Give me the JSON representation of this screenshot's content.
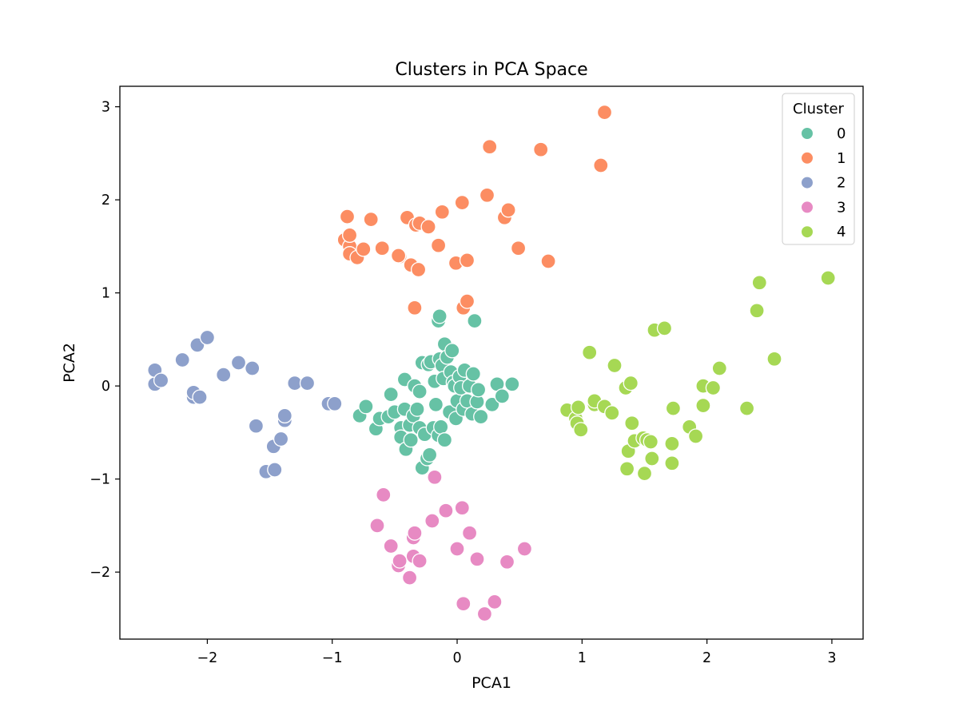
{
  "chart_data": {
    "type": "scatter",
    "title": "Clusters in PCA Space",
    "xlabel": "PCA1",
    "ylabel": "PCA2",
    "xlim": [
      -2.7,
      3.25
    ],
    "ylim": [
      -2.72,
      3.22
    ],
    "xticks": [
      -2,
      -1,
      0,
      1,
      2,
      3
    ],
    "yticks": [
      -2,
      -1,
      0,
      1,
      2,
      3
    ],
    "grid": false,
    "legend": {
      "title": "Cluster",
      "placement": "top-right"
    },
    "series": [
      {
        "name": "0",
        "color": "#66c2a5",
        "points": [
          [
            -0.78,
            -0.32
          ],
          [
            -0.73,
            -0.22
          ],
          [
            -0.65,
            -0.46
          ],
          [
            -0.62,
            -0.35
          ],
          [
            -0.55,
            -0.33
          ],
          [
            -0.53,
            -0.09
          ],
          [
            -0.5,
            -0.28
          ],
          [
            -0.45,
            -0.45
          ],
          [
            -0.45,
            -0.55
          ],
          [
            -0.42,
            -0.25
          ],
          [
            -0.42,
            0.07
          ],
          [
            -0.41,
            -0.68
          ],
          [
            -0.38,
            -0.42
          ],
          [
            -0.37,
            -0.58
          ],
          [
            -0.35,
            -0.32
          ],
          [
            -0.34,
            0.0
          ],
          [
            -0.32,
            -0.25
          ],
          [
            -0.3,
            -0.45
          ],
          [
            -0.3,
            -0.06
          ],
          [
            -0.28,
            0.25
          ],
          [
            -0.28,
            -0.88
          ],
          [
            -0.26,
            -0.52
          ],
          [
            -0.24,
            -0.78
          ],
          [
            -0.23,
            0.23
          ],
          [
            -0.22,
            -0.74
          ],
          [
            -0.21,
            0.26
          ],
          [
            -0.19,
            -0.45
          ],
          [
            -0.18,
            0.05
          ],
          [
            -0.17,
            -0.2
          ],
          [
            -0.15,
            -0.53
          ],
          [
            -0.15,
            0.7
          ],
          [
            -0.14,
            0.75
          ],
          [
            -0.14,
            0.29
          ],
          [
            -0.13,
            -0.44
          ],
          [
            -0.12,
            0.22
          ],
          [
            -0.11,
            0.08
          ],
          [
            -0.1,
            0.45
          ],
          [
            -0.1,
            -0.58
          ],
          [
            -0.08,
            0.31
          ],
          [
            -0.06,
            -0.28
          ],
          [
            -0.05,
            0.15
          ],
          [
            -0.04,
            0.38
          ],
          [
            -0.03,
            0.04
          ],
          [
            -0.02,
            0.0
          ],
          [
            -0.01,
            -0.35
          ],
          [
            0.0,
            -0.16
          ],
          [
            0.02,
            0.1
          ],
          [
            0.03,
            -0.02
          ],
          [
            0.05,
            -0.25
          ],
          [
            0.06,
            0.17
          ],
          [
            0.08,
            -0.16
          ],
          [
            0.1,
            0.0
          ],
          [
            0.12,
            -0.3
          ],
          [
            0.13,
            0.13
          ],
          [
            0.14,
            0.7
          ],
          [
            0.16,
            -0.17
          ],
          [
            0.17,
            -0.04
          ],
          [
            0.19,
            -0.33
          ],
          [
            0.28,
            -0.2
          ],
          [
            0.32,
            0.02
          ],
          [
            0.36,
            -0.11
          ],
          [
            0.44,
            0.02
          ]
        ]
      },
      {
        "name": "1",
        "color": "#fc8d62",
        "points": [
          [
            -0.9,
            1.57
          ],
          [
            -0.88,
            1.82
          ],
          [
            -0.86,
            1.5
          ],
          [
            -0.86,
            1.42
          ],
          [
            -0.86,
            1.62
          ],
          [
            -0.8,
            1.38
          ],
          [
            -0.75,
            1.47
          ],
          [
            -0.69,
            1.79
          ],
          [
            -0.6,
            1.48
          ],
          [
            -0.46,
            1.39
          ],
          [
            -0.47,
            1.4
          ],
          [
            -0.4,
            1.81
          ],
          [
            -0.37,
            1.3
          ],
          [
            -0.33,
            1.73
          ],
          [
            -0.3,
            1.75
          ],
          [
            -0.31,
            1.25
          ],
          [
            -0.34,
            0.84
          ],
          [
            -0.23,
            1.71
          ],
          [
            -0.15,
            1.51
          ],
          [
            -0.12,
            1.87
          ],
          [
            -0.01,
            1.32
          ],
          [
            0.04,
            1.97
          ],
          [
            0.05,
            0.84
          ],
          [
            0.08,
            1.35
          ],
          [
            0.08,
            0.91
          ],
          [
            0.24,
            2.05
          ],
          [
            0.26,
            2.57
          ],
          [
            0.38,
            1.81
          ],
          [
            0.41,
            1.89
          ],
          [
            0.49,
            1.48
          ],
          [
            0.67,
            2.54
          ],
          [
            0.73,
            1.34
          ],
          [
            1.15,
            2.37
          ],
          [
            1.18,
            2.94
          ]
        ]
      },
      {
        "name": "2",
        "color": "#8da0cb",
        "points": [
          [
            -2.42,
            0.02
          ],
          [
            -2.42,
            0.17
          ],
          [
            -2.37,
            0.06
          ],
          [
            -2.2,
            0.28
          ],
          [
            -2.11,
            -0.12
          ],
          [
            -2.11,
            -0.07
          ],
          [
            -2.08,
            0.44
          ],
          [
            -2.06,
            -0.12
          ],
          [
            -2.0,
            0.52
          ],
          [
            -1.87,
            0.12
          ],
          [
            -1.75,
            0.25
          ],
          [
            -1.64,
            0.19
          ],
          [
            -1.61,
            -0.43
          ],
          [
            -1.53,
            -0.92
          ],
          [
            -1.47,
            -0.65
          ],
          [
            -1.46,
            -0.9
          ],
          [
            -1.41,
            -0.57
          ],
          [
            -1.38,
            -0.37
          ],
          [
            -1.38,
            -0.32
          ],
          [
            -1.3,
            0.03
          ],
          [
            -1.2,
            0.03
          ],
          [
            -1.03,
            -0.19
          ],
          [
            -0.98,
            -0.19
          ]
        ]
      },
      {
        "name": "3",
        "color": "#e78ac3",
        "points": [
          [
            -0.64,
            -1.5
          ],
          [
            -0.59,
            -1.17
          ],
          [
            -0.53,
            -1.72
          ],
          [
            -0.47,
            -1.93
          ],
          [
            -0.46,
            -1.88
          ],
          [
            -0.38,
            -2.06
          ],
          [
            -0.35,
            -1.63
          ],
          [
            -0.35,
            -1.83
          ],
          [
            -0.34,
            -1.58
          ],
          [
            -0.3,
            -1.88
          ],
          [
            -0.2,
            -1.45
          ],
          [
            -0.18,
            -0.98
          ],
          [
            -0.09,
            -1.34
          ],
          [
            0.0,
            -1.75
          ],
          [
            0.04,
            -1.31
          ],
          [
            0.05,
            -2.34
          ],
          [
            0.1,
            -1.58
          ],
          [
            0.16,
            -1.86
          ],
          [
            0.22,
            -2.45
          ],
          [
            0.3,
            -2.32
          ],
          [
            0.4,
            -1.89
          ],
          [
            0.54,
            -1.75
          ]
        ]
      },
      {
        "name": "4",
        "color": "#a6d854",
        "points": [
          [
            0.88,
            -0.26
          ],
          [
            0.95,
            -0.35
          ],
          [
            0.96,
            -0.4
          ],
          [
            0.97,
            -0.23
          ],
          [
            0.99,
            -0.47
          ],
          [
            1.06,
            0.36
          ],
          [
            1.1,
            -0.2
          ],
          [
            1.1,
            -0.16
          ],
          [
            1.18,
            -0.22
          ],
          [
            1.24,
            -0.29
          ],
          [
            1.26,
            0.22
          ],
          [
            1.35,
            -0.02
          ],
          [
            1.36,
            -0.89
          ],
          [
            1.37,
            -0.7
          ],
          [
            1.39,
            0.03
          ],
          [
            1.4,
            -0.4
          ],
          [
            1.42,
            -0.59
          ],
          [
            1.49,
            -0.56
          ],
          [
            1.5,
            -0.94
          ],
          [
            1.52,
            -0.58
          ],
          [
            1.55,
            -0.6
          ],
          [
            1.56,
            -0.78
          ],
          [
            1.58,
            0.6
          ],
          [
            1.66,
            0.62
          ],
          [
            1.72,
            -0.62
          ],
          [
            1.72,
            -0.83
          ],
          [
            1.73,
            -0.24
          ],
          [
            1.86,
            -0.44
          ],
          [
            1.91,
            -0.54
          ],
          [
            1.97,
            0.0
          ],
          [
            1.97,
            -0.21
          ],
          [
            2.05,
            -0.02
          ],
          [
            2.1,
            0.19
          ],
          [
            2.32,
            -0.24
          ],
          [
            2.4,
            0.81
          ],
          [
            2.42,
            1.11
          ],
          [
            2.54,
            0.29
          ],
          [
            2.97,
            1.16
          ]
        ]
      }
    ]
  }
}
